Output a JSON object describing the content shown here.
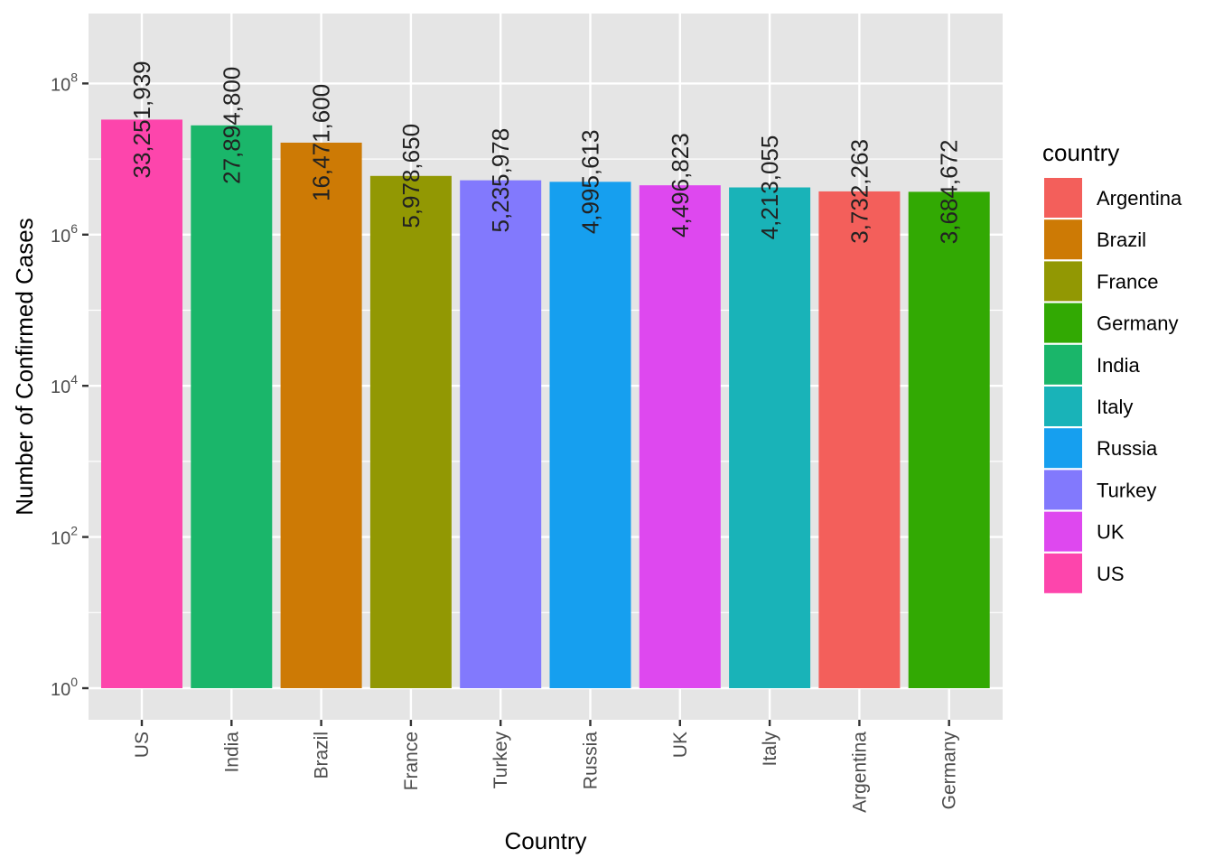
{
  "chart_data": {
    "type": "bar",
    "title": "",
    "xlabel": "Country",
    "ylabel": "Number of Confirmed Cases",
    "y_scale": "log10",
    "ylim": [
      0.38,
      850000000
    ],
    "y_ticks": [
      1,
      100,
      10000,
      1000000,
      100000000
    ],
    "y_tick_labels": [
      {
        "base": "10",
        "exp": "0"
      },
      {
        "base": "10",
        "exp": "2"
      },
      {
        "base": "10",
        "exp": "4"
      },
      {
        "base": "10",
        "exp": "6"
      },
      {
        "base": "10",
        "exp": "8"
      }
    ],
    "grid": true,
    "categories": [
      "US",
      "India",
      "Brazil",
      "France",
      "Turkey",
      "Russia",
      "UK",
      "Italy",
      "Argentina",
      "Germany"
    ],
    "values": [
      33251939,
      27894800,
      16471600,
      5978650,
      5235978,
      4995613,
      4496823,
      4213055,
      3732263,
      3684672
    ],
    "data_labels": [
      "33,251,939",
      "27,894,800",
      "16,471,600",
      "5,978,650",
      "5,235,978",
      "4,995,613",
      "4,496,823",
      "4,213,055",
      "3,732,263",
      "3,684,672"
    ],
    "legend": {
      "title": "country",
      "placement": "right",
      "entries": [
        "Argentina",
        "Brazil",
        "France",
        "Germany",
        "India",
        "Italy",
        "Russia",
        "Turkey",
        "UK",
        "US"
      ],
      "colors": [
        "#F8766D",
        "#D39200",
        "#93AA00",
        "#00BA38",
        "#00C19F",
        "#00B9E3",
        "#619CFF",
        "#DB72FB",
        "#FF61C3",
        "#FF61C3"
      ]
    },
    "colors": {
      "Argentina": "#F35F5B",
      "Brazil": "#CD7A05",
      "France": "#929803",
      "Germany": "#32A903",
      "India": "#1AB66A",
      "Italy": "#19B3B8",
      "Russia": "#169FEF",
      "Turkey": "#8279FD",
      "UK": "#DE48EF",
      "US": "#FD45AC"
    },
    "panel_background": "#E5E5E5"
  }
}
